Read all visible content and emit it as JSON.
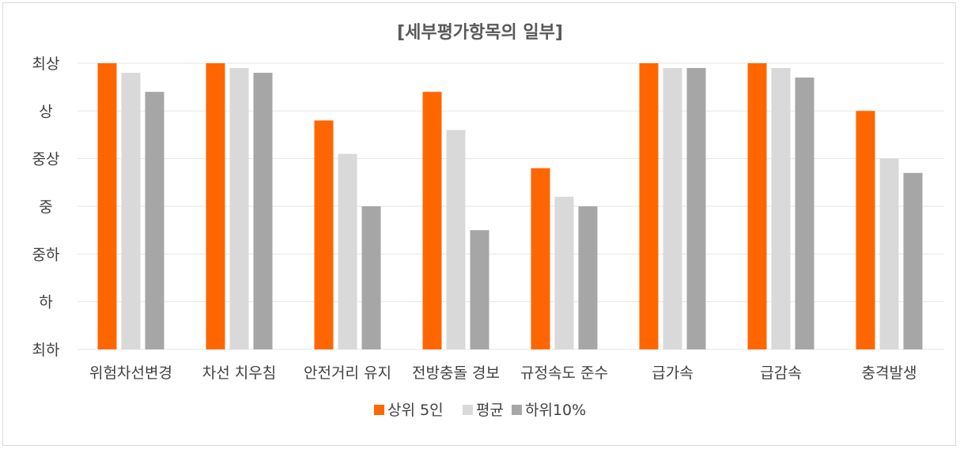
{
  "chart_data": {
    "type": "bar",
    "title": "[세부평가항목의 일부]",
    "xlabel": "",
    "ylabel": "",
    "y_levels": [
      "최하",
      "하",
      "중하",
      "중",
      "중상",
      "상",
      "최상"
    ],
    "ylim": [
      0,
      6
    ],
    "grid": true,
    "legend_position": "bottom",
    "categories": [
      "위험차선변경",
      "차선 치우침",
      "안전거리 유지",
      "전방충돌 경보",
      "규정속도 준수",
      "급가속",
      "급감속",
      "충격발생"
    ],
    "series": [
      {
        "name": "상위 5인",
        "color": "#ff6600",
        "values": [
          6.0,
          6.0,
          4.8,
          5.4,
          3.8,
          6.0,
          6.0,
          5.0
        ]
      },
      {
        "name": "평균",
        "color": "#d9d9d9",
        "values": [
          5.8,
          5.9,
          4.1,
          4.6,
          3.2,
          5.9,
          5.9,
          4.0
        ]
      },
      {
        "name": "하위10%",
        "color": "#a6a6a6",
        "values": [
          5.4,
          5.8,
          3.0,
          2.5,
          3.0,
          5.9,
          5.7,
          3.7
        ]
      }
    ]
  }
}
